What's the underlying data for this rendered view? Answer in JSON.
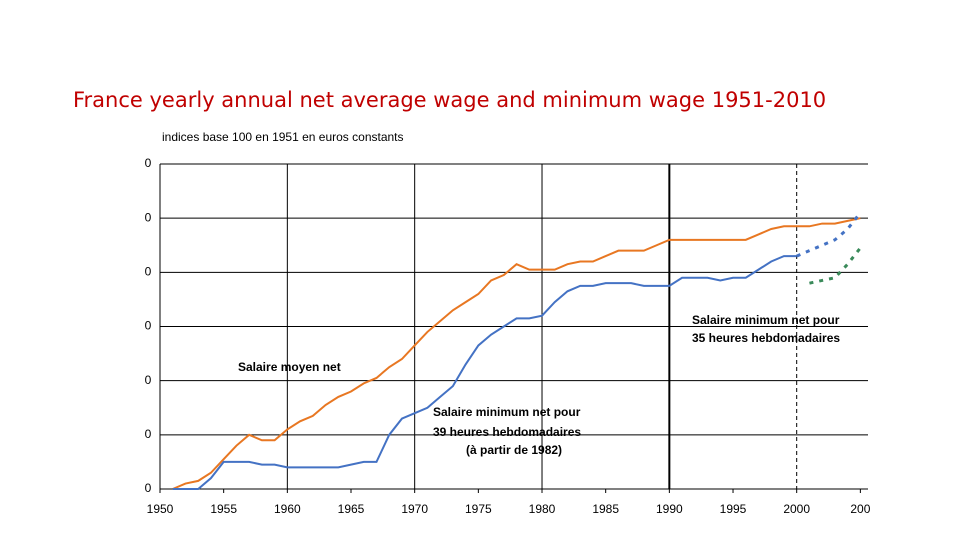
{
  "chart_data": {
    "type": "line",
    "title": "France yearly annual net average wage and minimum wage 1951-2010",
    "subtitle": "indices base 100 en 1951 en euros constants",
    "annotations": [
      "Salaire moyen net",
      "Salaire minimum net pour",
      "39 heures hebdomadaires",
      "(à partir de 1982)",
      "Salaire minimum net pour",
      "35 heures hebdomadaires"
    ],
    "x": [
      1951,
      1952,
      1953,
      1954,
      1955,
      1956,
      1957,
      1958,
      1959,
      1960,
      1961,
      1962,
      1963,
      1964,
      1965,
      1966,
      1967,
      1968,
      1969,
      1970,
      1971,
      1972,
      1973,
      1974,
      1975,
      1976,
      1977,
      1978,
      1979,
      1980,
      1981,
      1982,
      1983,
      1984,
      1985,
      1986,
      1987,
      1988,
      1989,
      1990,
      1991,
      1992,
      1993,
      1994,
      1995,
      1996,
      1997,
      1998,
      1999,
      2000,
      2001,
      2002,
      2003,
      2004,
      2005
    ],
    "series": [
      {
        "color": "#e87722",
        "dash": false,
        "values": [
          100,
          102,
          103,
          106,
          111,
          116,
          120,
          118,
          118,
          122,
          125,
          127,
          131,
          134,
          136,
          139,
          141,
          145,
          148,
          153,
          158,
          162,
          166,
          169,
          172,
          177,
          179,
          183,
          181,
          181,
          181,
          183,
          184,
          184,
          186,
          188,
          188,
          188,
          190,
          192,
          192,
          192,
          192,
          192,
          192,
          192,
          194,
          196,
          197,
          197,
          197,
          198,
          198,
          199,
          200
        ]
      },
      {
        "color": "#4472c4",
        "dash": false,
        "values": [
          100,
          100,
          100,
          104,
          110,
          110,
          110,
          109,
          109,
          108,
          108,
          108,
          108,
          108,
          109,
          110,
          110,
          120,
          126,
          128,
          130,
          134,
          138,
          146,
          153,
          157,
          160,
          163,
          163,
          164,
          169,
          173,
          175,
          175,
          176,
          176,
          176,
          175,
          175,
          175,
          178,
          178,
          178,
          177,
          178,
          178,
          181,
          184,
          186,
          186,
          null,
          null,
          null,
          null,
          null
        ]
      },
      {
        "color": "#4472c4",
        "dash": true,
        "values": [
          null,
          null,
          null,
          null,
          null,
          null,
          null,
          null,
          null,
          null,
          null,
          null,
          null,
          null,
          null,
          null,
          null,
          null,
          null,
          null,
          null,
          null,
          null,
          null,
          null,
          null,
          null,
          null,
          null,
          null,
          null,
          null,
          null,
          null,
          null,
          null,
          null,
          null,
          null,
          null,
          null,
          null,
          null,
          null,
          null,
          null,
          null,
          null,
          null,
          186,
          188,
          190,
          192,
          196,
          202
        ]
      },
      {
        "color": "#3a8a5a",
        "dash": true,
        "values": [
          null,
          null,
          null,
          null,
          null,
          null,
          null,
          null,
          null,
          null,
          null,
          null,
          null,
          null,
          null,
          null,
          null,
          null,
          null,
          null,
          null,
          null,
          null,
          null,
          null,
          null,
          null,
          null,
          null,
          null,
          null,
          null,
          null,
          null,
          null,
          null,
          null,
          null,
          null,
          null,
          null,
          null,
          null,
          null,
          null,
          null,
          null,
          null,
          null,
          null,
          176,
          177,
          178,
          183,
          189
        ]
      }
    ],
    "xlim": [
      1950,
      2005.6
    ],
    "xticks": [
      1950,
      1955,
      1960,
      1965,
      1970,
      1975,
      1980,
      1985,
      1990,
      1995,
      2000,
      {
        "value": 2005,
        "label": "200"
      }
    ],
    "ylim": [
      100,
      220
    ],
    "yticks": [
      {
        "value": 100,
        "label": "0"
      },
      {
        "value": 120,
        "label": "0"
      },
      {
        "value": 140,
        "label": "0"
      },
      {
        "value": 160,
        "label": "0"
      },
      {
        "value": 180,
        "label": "0"
      },
      {
        "value": 200,
        "label": "0"
      },
      {
        "value": 220,
        "label": "0"
      }
    ],
    "grid": true
  }
}
